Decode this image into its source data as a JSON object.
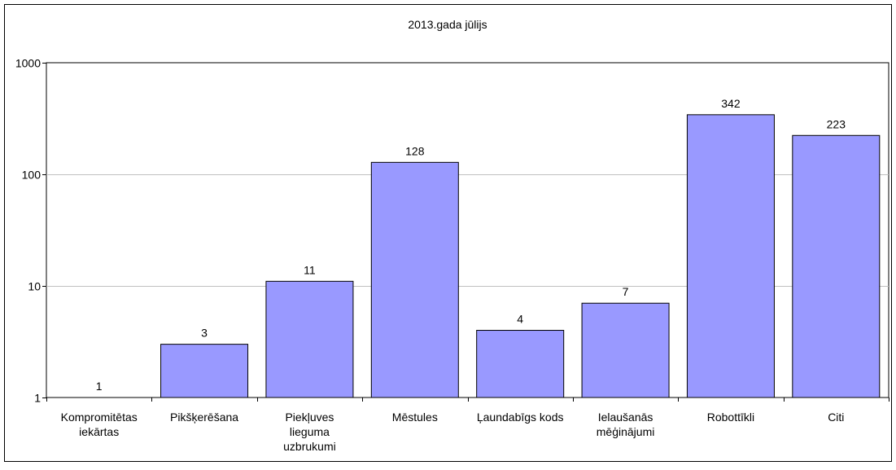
{
  "chart_data": {
    "type": "bar",
    "title": "2013.gada jūlijs",
    "xlabel": "",
    "ylabel": "",
    "y_scale": "log",
    "ylim": [
      1,
      1000
    ],
    "y_ticks": [
      "1",
      "10",
      "100",
      "1000"
    ],
    "grid": true,
    "legend": "none",
    "categories": [
      [
        "Kompromitētas",
        "iekārtas"
      ],
      [
        "Pikšķerēšana"
      ],
      [
        "Piekļuves",
        "lieguma",
        "uzbrukumi"
      ],
      [
        "Mēstules"
      ],
      [
        "Ļaundabīgs kods"
      ],
      [
        "Ielaušanās",
        "mēģinājumi"
      ],
      [
        "Robottīkli"
      ],
      [
        "Citi"
      ]
    ],
    "values": [
      1,
      3,
      11,
      128,
      4,
      7,
      342,
      223
    ],
    "value_labels": [
      "1",
      "3",
      "11",
      "128",
      "4",
      "7",
      "342",
      "223"
    ],
    "bar_color": "#9999ff",
    "bar_stroke": "#000000",
    "gridline_color": "#c0c0c0"
  }
}
